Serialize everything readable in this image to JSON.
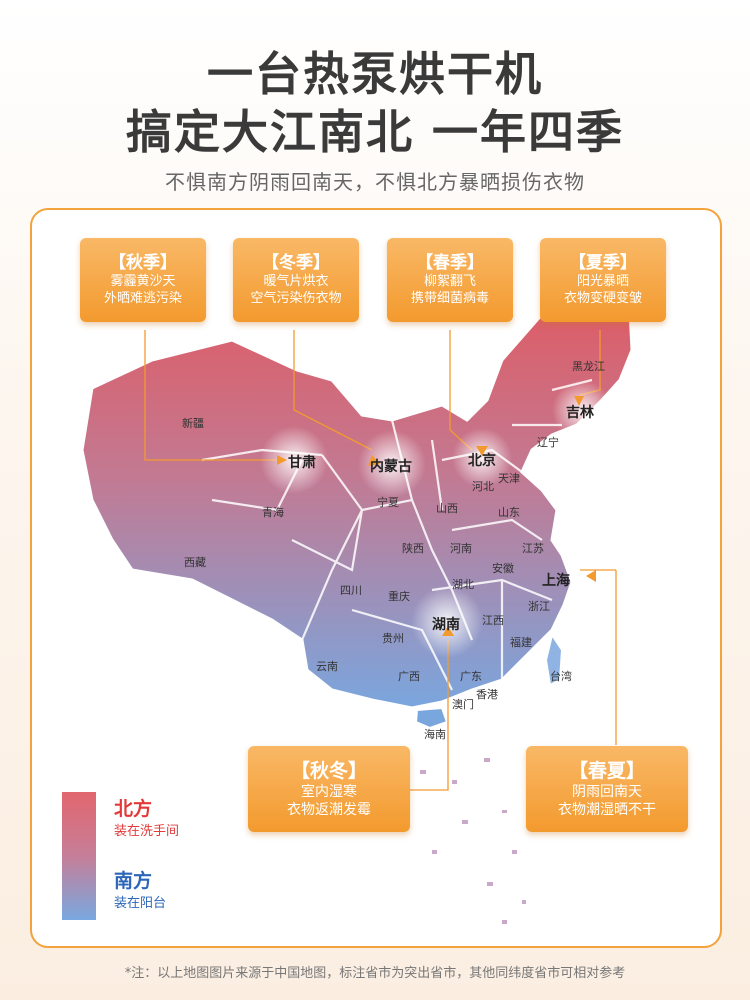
{
  "header": {
    "title_line1": "一台热泵烘干机",
    "title_line2": "搞定大江南北  一年四季",
    "subtitle": "不惧南方阴雨回南天，不惧北方暴晒损伤衣物"
  },
  "callouts": {
    "autumn": {
      "title": "【秋季】",
      "line1": "雾霾黄沙天",
      "line2": "外晒难逃污染"
    },
    "winter": {
      "title": "【冬季】",
      "line1": "暖气片烘衣",
      "line2": "空气污染伤衣物"
    },
    "spring": {
      "title": "【春季】",
      "line1": "柳絮翻飞",
      "line2": "携带细菌病毒"
    },
    "summer": {
      "title": "【夏季】",
      "line1": "阳光暴晒",
      "line2": "衣物变硬变皱"
    },
    "autumn_winter": {
      "title": "【秋冬】",
      "line1": "室内湿寒",
      "line2": "衣物返潮发霉"
    },
    "spring_summer": {
      "title": "【春夏】",
      "line1": "阴雨回南天",
      "line2": "衣物潮湿晒不干"
    }
  },
  "cities": {
    "gansu": "甘肃",
    "neimenggu": "内蒙古",
    "beijing": "北京",
    "jilin": "吉林",
    "shanghai": "上海",
    "hunan": "湖南"
  },
  "provinces": {
    "xinjiang": "新疆",
    "xizang": "西藏",
    "qinghai": "青海",
    "heilongjiang": "黑龙江",
    "liaoning": "辽宁",
    "tianjin": "天津",
    "hebei": "河北",
    "ningxia": "宁夏",
    "shanxi": "山西",
    "shandong": "山东",
    "shaanxi": "陕西",
    "henan": "河南",
    "jiangsu": "江苏",
    "anhui": "安徽",
    "sichuan": "四川",
    "hubei": "湖北",
    "chongqing": "重庆",
    "zhejiang": "浙江",
    "guizhou": "贵州",
    "jiangxi": "江西",
    "fujian": "福建",
    "yunnan": "云南",
    "guangxi": "广西",
    "guangdong": "广东",
    "taiwan": "台湾",
    "xianggang": "香港",
    "aomen": "澳门",
    "hainan": "海南"
  },
  "legend": {
    "north_title": "北方",
    "north_sub": "装在洗手间",
    "south_title": "南方",
    "south_sub": "装在阳台",
    "north_color": "#e23a3a",
    "south_color": "#2d66b8"
  },
  "colors": {
    "accent": "#f39a2e",
    "map_north": "#e2666e",
    "map_south": "#79a8e0"
  },
  "footnote": "*注：以上地图图片来源于中国地图，标注省市为突出省市，其他同纬度省市可相对参考"
}
